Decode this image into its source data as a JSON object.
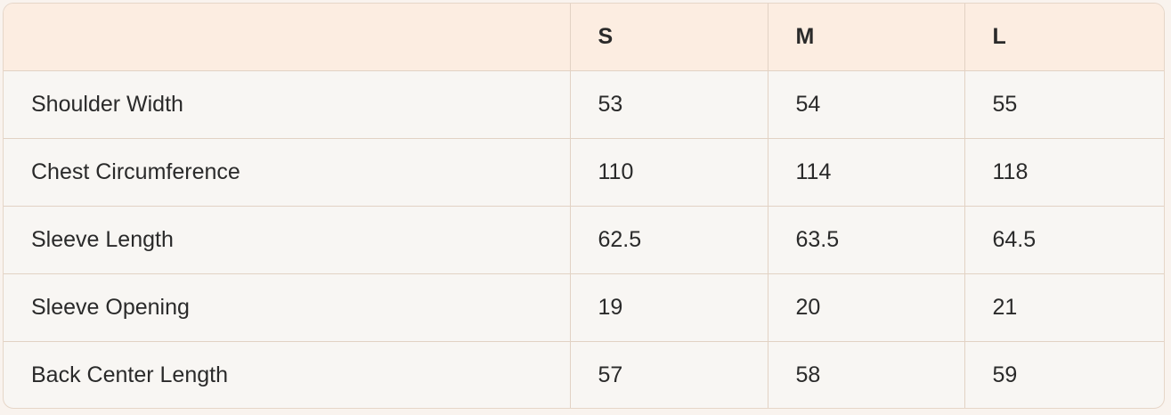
{
  "table": {
    "headers": [
      "",
      "S",
      "M",
      "L"
    ],
    "rows": [
      [
        "Shoulder Width",
        "53",
        "54",
        "55"
      ],
      [
        "Chest Circumference",
        "110",
        "114",
        "118"
      ],
      [
        "Sleeve Length",
        "62.5",
        "63.5",
        "64.5"
      ],
      [
        "Sleeve Opening",
        "19",
        "20",
        "21"
      ],
      [
        "Back Center Length",
        "57",
        "58",
        "59"
      ]
    ]
  },
  "colors": {
    "header_bg": "#fcede1",
    "body_bg": "#f8f6f3",
    "border": "#e2d2c4"
  }
}
